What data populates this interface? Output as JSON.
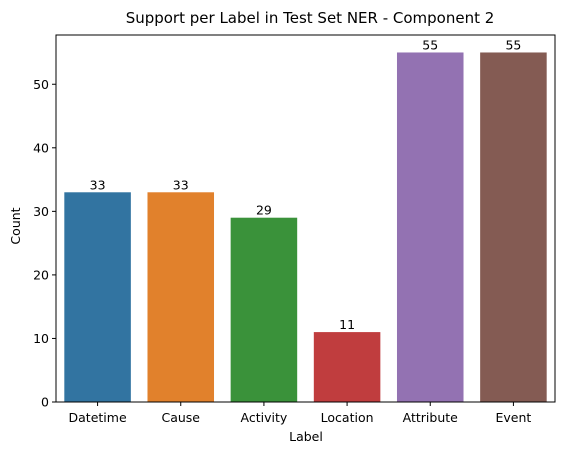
{
  "chart_data": {
    "type": "bar",
    "title": "Support per Label in Test Set NER - Component 2",
    "xlabel": "Label",
    "ylabel": "Count",
    "categories": [
      "Datetime",
      "Cause",
      "Activity",
      "Location",
      "Attribute",
      "Event"
    ],
    "values": [
      33,
      33,
      29,
      11,
      55,
      55
    ],
    "data_labels": [
      "33",
      "33",
      "29",
      "11",
      "55",
      "55"
    ],
    "colors": [
      "#3274a1",
      "#e1812c",
      "#3a923a",
      "#c03d3e",
      "#9372b2",
      "#845b53"
    ],
    "ylim": [
      0,
      57.75
    ],
    "yticks": [
      0,
      10,
      20,
      30,
      40,
      50
    ],
    "ytick_labels": [
      "0",
      "10",
      "20",
      "30",
      "40",
      "50"
    ],
    "grid": false,
    "legend": "none"
  }
}
